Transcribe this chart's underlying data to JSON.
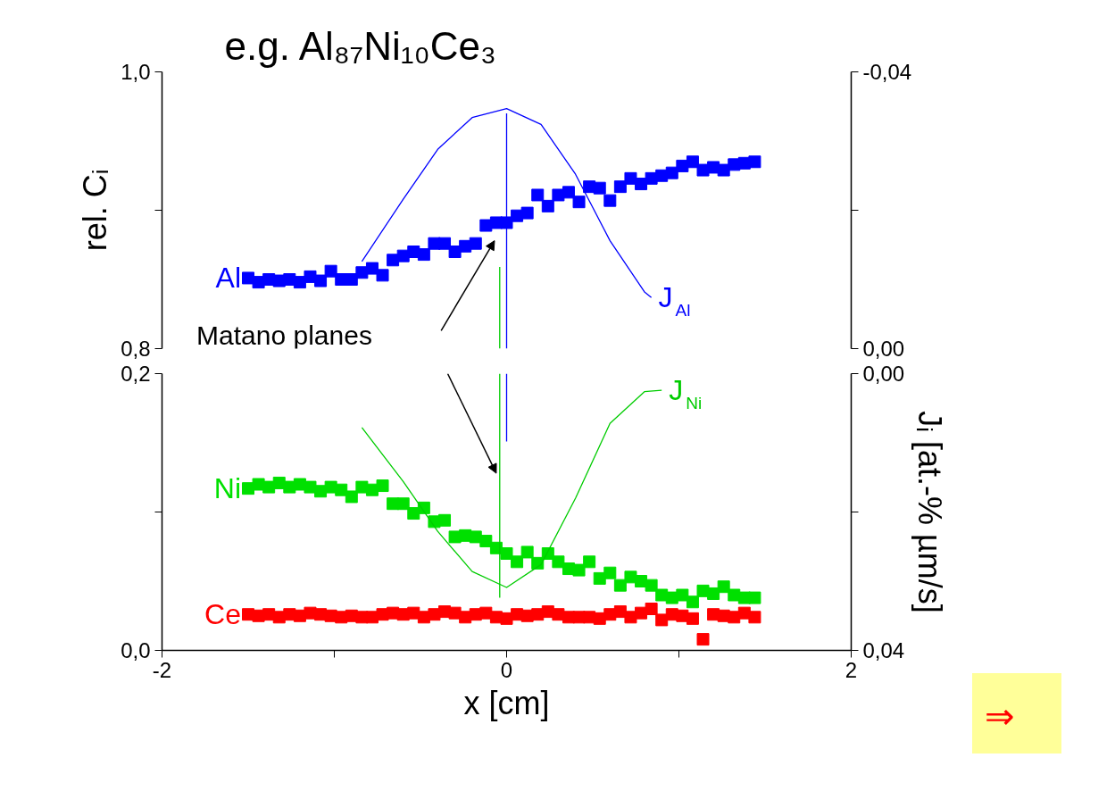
{
  "chart_data": [
    {
      "type": "scatter",
      "title": "e.g. Al₈₇Ni₁₀Ce₃",
      "ylabel": "rel. Cᵢ",
      "xlim": [
        -2,
        2
      ],
      "ylim": [
        0.8,
        1.0
      ],
      "yticks": [
        {
          "value": 0.8,
          "label": "0,8"
        },
        {
          "value": 0.9,
          "label": null
        },
        {
          "value": 1.0,
          "label": "1,0"
        }
      ],
      "y2lim": [
        0,
        -0.04
      ],
      "y2ticks": [
        {
          "value": 0,
          "label": "0,00"
        },
        {
          "value": -0.02,
          "label": null
        },
        {
          "value": -0.04,
          "label": "-0,04"
        }
      ],
      "tick_labels": "y",
      "marker": "square",
      "grid": false,
      "legend": false,
      "x": [
        -1.5,
        -1.44,
        -1.38,
        -1.32,
        -1.26,
        -1.2,
        -1.14,
        -1.08,
        -1.02,
        -0.96,
        -0.9,
        -0.84,
        -0.78,
        -0.72,
        -0.66,
        -0.6,
        -0.54,
        -0.48,
        -0.42,
        -0.36,
        -0.3,
        -0.24,
        -0.18,
        -0.12,
        -0.06,
        0,
        0.06,
        0.12,
        0.18,
        0.24,
        0.3,
        0.36,
        0.42,
        0.48,
        0.54,
        0.6,
        0.66,
        0.72,
        0.78,
        0.84,
        0.9,
        0.96,
        1.02,
        1.08,
        1.14,
        1.2,
        1.26,
        1.32,
        1.38,
        1.44
      ],
      "series": [
        {
          "name": "Al",
          "color": "#0000ff",
          "values": [
            0.851,
            0.848,
            0.85,
            0.849,
            0.85,
            0.848,
            0.852,
            0.849,
            0.856,
            0.85,
            0.85,
            0.855,
            0.858,
            0.853,
            0.864,
            0.867,
            0.87,
            0.868,
            0.876,
            0.876,
            0.87,
            0.874,
            0.876,
            0.889,
            0.891,
            0.891,
            0.896,
            0.898,
            0.911,
            0.903,
            0.911,
            0.913,
            0.906,
            0.917,
            0.916,
            0.907,
            0.917,
            0.923,
            0.919,
            0.923,
            0.925,
            0.927,
            0.932,
            0.935,
            0.929,
            0.931,
            0.929,
            0.933,
            0.934,
            0.935
          ]
        },
        {
          "name": "J$_{Al}$",
          "type": "line",
          "marker": "none",
          "axis": "y2",
          "color": "#0000ff",
          "x": [
            -0.84,
            -0.6,
            -0.4,
            -0.2,
            0,
            0.2,
            0.4,
            0.6,
            0.8,
            0.84
          ],
          "values": [
            -0.0126,
            -0.0216,
            -0.0288,
            -0.0334,
            -0.0347,
            -0.0324,
            -0.0252,
            -0.0156,
            -0.0082,
            -0.0074
          ]
        },
        {
          "type": "line",
          "marker": "none",
          "color": "#0000ff",
          "x": [
            0,
            0
          ],
          "values": [
            0.97,
            0.8
          ]
        },
        {
          "type": "line",
          "marker": "none",
          "color": "#00cc00",
          "x": [
            -0.04,
            -0.04
          ],
          "values": [
            0.859,
            0.8
          ]
        }
      ],
      "annotations": [
        "Matano planes"
      ]
    },
    {
      "type": "scatter",
      "xlabel": "x [cm]",
      "y2label": "Jᵢ [at.-% µm/s]",
      "xlim": [
        -2,
        2
      ],
      "xticks": [
        {
          "value": -2,
          "label": "-2"
        },
        {
          "value": -1,
          "label": null
        },
        {
          "value": 0,
          "label": "0"
        },
        {
          "value": 1,
          "label": null
        },
        {
          "value": 2,
          "label": "2"
        }
      ],
      "ylim": [
        0,
        0.2
      ],
      "yticks": [
        {
          "value": 0,
          "label": "0,0"
        },
        {
          "value": 0.1,
          "label": null
        },
        {
          "value": 0.2,
          "label": "0,2"
        }
      ],
      "y2lim": [
        0.04,
        0
      ],
      "y2ticks": [
        {
          "value": 0,
          "label": "0,00"
        },
        {
          "value": 0.02,
          "label": null
        },
        {
          "value": 0.04,
          "label": "0,04"
        }
      ],
      "marker": "square",
      "grid": false,
      "legend": false,
      "x": [
        -1.5,
        -1.44,
        -1.38,
        -1.32,
        -1.26,
        -1.2,
        -1.14,
        -1.08,
        -1.02,
        -0.96,
        -0.9,
        -0.84,
        -0.78,
        -0.72,
        -0.66,
        -0.6,
        -0.54,
        -0.48,
        -0.42,
        -0.36,
        -0.3,
        -0.24,
        -0.18,
        -0.12,
        -0.06,
        0,
        0.06,
        0.12,
        0.18,
        0.24,
        0.3,
        0.36,
        0.42,
        0.48,
        0.54,
        0.6,
        0.66,
        0.72,
        0.78,
        0.84,
        0.9,
        0.96,
        1.02,
        1.08,
        1.14,
        1.2,
        1.26,
        1.32,
        1.38,
        1.44
      ],
      "series": [
        {
          "name": "Ni",
          "color": "#00e000",
          "values": [
            0.117,
            0.12,
            0.118,
            0.121,
            0.118,
            0.12,
            0.118,
            0.115,
            0.118,
            0.116,
            0.111,
            0.118,
            0.116,
            0.119,
            0.106,
            0.106,
            0.099,
            0.103,
            0.093,
            0.094,
            0.082,
            0.083,
            0.082,
            0.079,
            0.074,
            0.07,
            0.064,
            0.071,
            0.063,
            0.07,
            0.064,
            0.059,
            0.058,
            0.064,
            0.052,
            0.056,
            0.047,
            0.053,
            0.05,
            0.047,
            0.04,
            0.038,
            0.04,
            0.035,
            0.043,
            0.041,
            0.046,
            0.04,
            0.038,
            0.038
          ]
        },
        {
          "name": "Ce",
          "color": "#ff0000",
          "values": [
            0.026,
            0.025,
            0.026,
            0.024,
            0.026,
            0.025,
            0.027,
            0.026,
            0.025,
            0.024,
            0.025,
            0.024,
            0.024,
            0.026,
            0.027,
            0.026,
            0.027,
            0.024,
            0.026,
            0.028,
            0.027,
            0.024,
            0.026,
            0.027,
            0.024,
            0.023,
            0.026,
            0.025,
            0.026,
            0.028,
            0.026,
            0.024,
            0.024,
            0.024,
            0.023,
            0.026,
            0.028,
            0.024,
            0.027,
            0.03,
            0.022,
            0.026,
            0.025,
            0.023,
            0.008,
            0.026,
            0.025,
            0.024,
            0.027,
            0.024
          ]
        },
        {
          "name": "J$_{Ni}$",
          "type": "line",
          "marker": "none",
          "axis": "y2",
          "color": "#00cc00",
          "x": [
            -0.84,
            -0.6,
            -0.4,
            -0.2,
            0,
            0.2,
            0.4,
            0.6,
            0.8,
            0.9
          ],
          "values": [
            0.0078,
            0.0156,
            0.0228,
            0.0286,
            0.0309,
            0.0276,
            0.018,
            0.0072,
            0.0026,
            0.0024
          ]
        },
        {
          "type": "line",
          "marker": "none",
          "color": "#0000ff",
          "x": [
            0,
            0
          ],
          "values": [
            0.2,
            0.151
          ]
        },
        {
          "type": "line",
          "marker": "none",
          "color": "#00cc00",
          "x": [
            -0.04,
            -0.04
          ],
          "values": [
            0.2,
            0.038
          ]
        }
      ],
      "annotations": [
        "⇒"
      ]
    }
  ]
}
